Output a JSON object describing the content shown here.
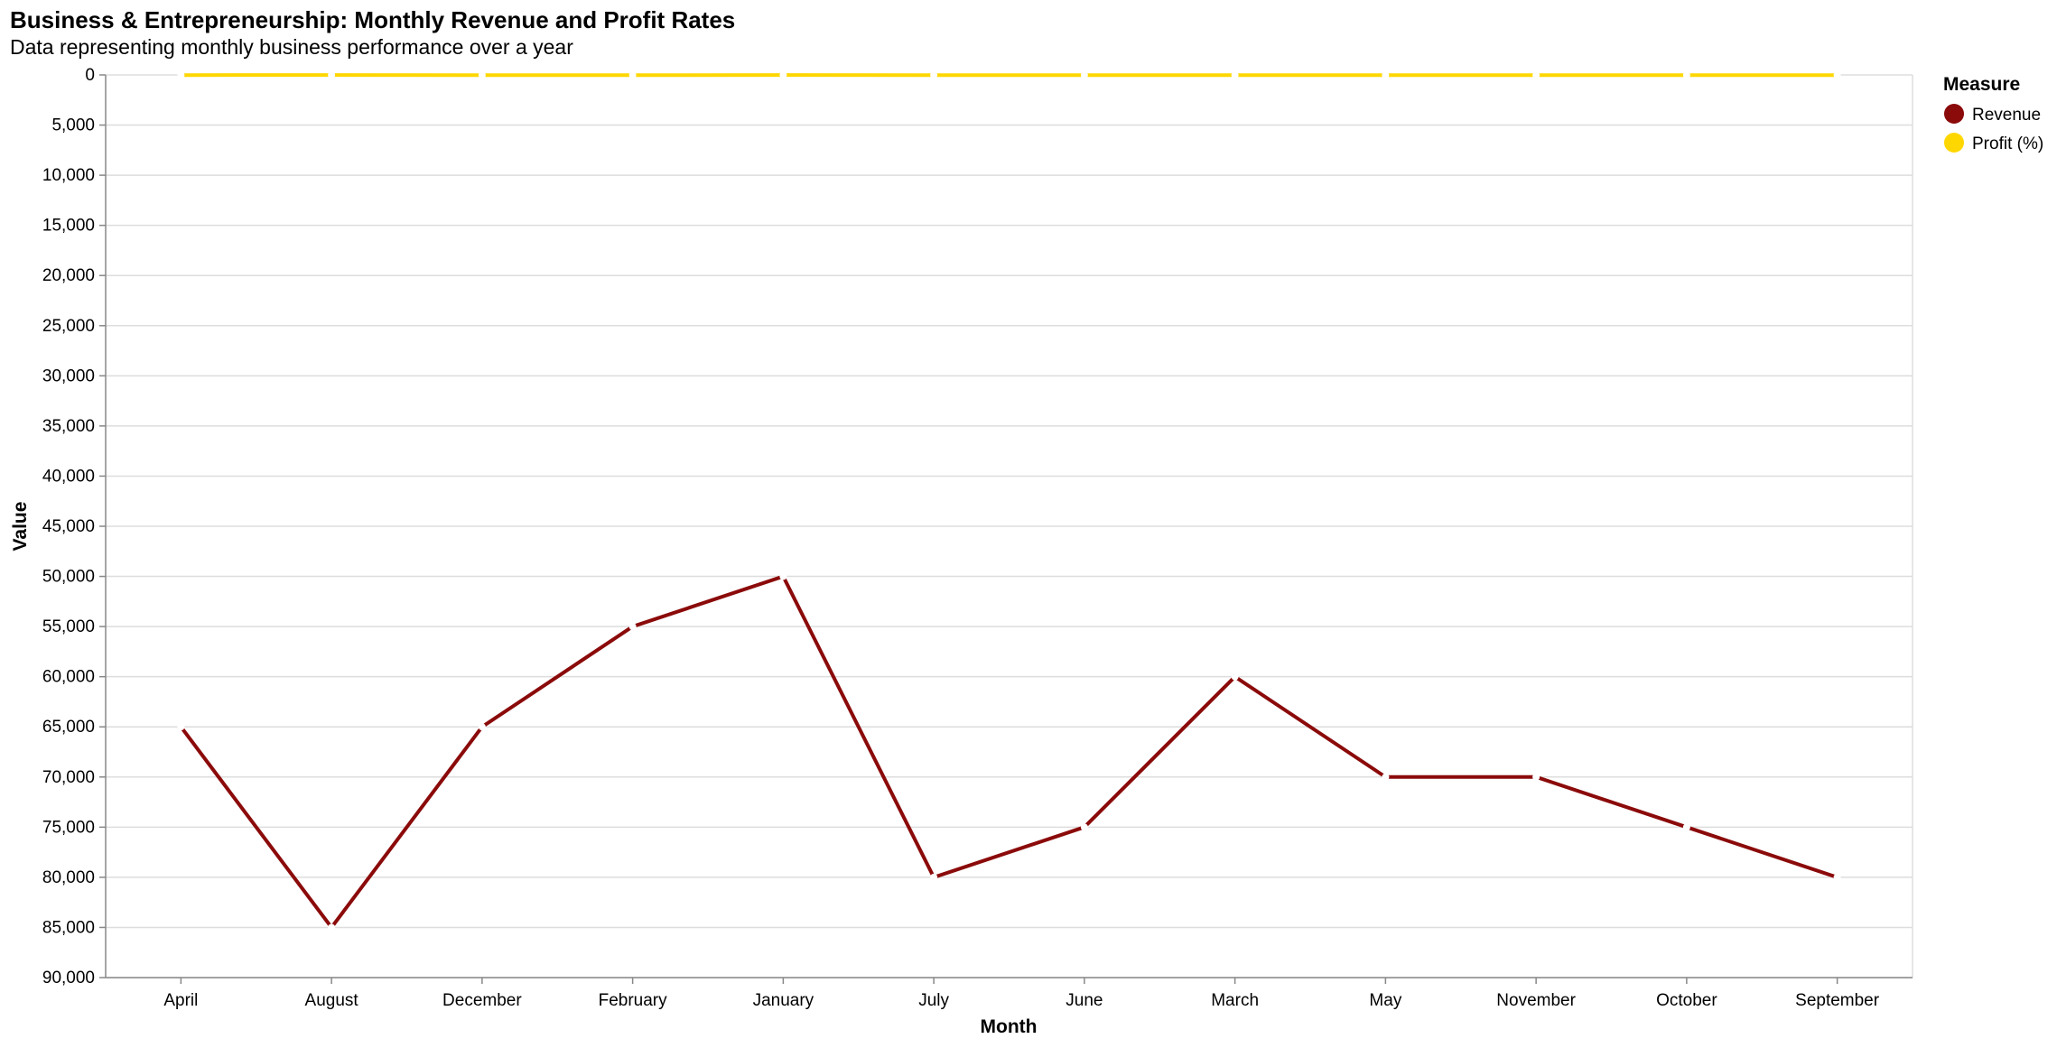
{
  "chart_data": {
    "type": "line",
    "title": "Business & Entrepreneurship: Monthly Revenue and Profit Rates",
    "subtitle": "Data representing monthly business performance over a year",
    "xlabel": "Month",
    "ylabel": "Value",
    "categories": [
      "April",
      "August",
      "December",
      "February",
      "January",
      "July",
      "June",
      "March",
      "May",
      "November",
      "October",
      "September"
    ],
    "y_ticks": [
      "0",
      "5,000",
      "10,000",
      "15,000",
      "20,000",
      "25,000",
      "30,000",
      "35,000",
      "40,000",
      "45,000",
      "50,000",
      "55,000",
      "60,000",
      "65,000",
      "70,000",
      "75,000",
      "80,000",
      "85,000",
      "90,000"
    ],
    "ylim": [
      0,
      90000
    ],
    "y_axis_reversed": true,
    "grid": true,
    "legend": {
      "title": "Measure",
      "placement": "right",
      "entries": [
        "Revenue",
        "Profit (%)"
      ]
    },
    "series": [
      {
        "name": "Revenue",
        "color": "#8b0a0a",
        "values": [
          65000,
          85000,
          65000,
          55000,
          50000,
          80000,
          75000,
          60000,
          70000,
          70000,
          75000,
          80000
        ]
      },
      {
        "name": "Profit (%)",
        "color": "#ffd700",
        "values": [
          20,
          10,
          23,
          18,
          15,
          25,
          22,
          17,
          21,
          23,
          24,
          26
        ]
      }
    ]
  }
}
